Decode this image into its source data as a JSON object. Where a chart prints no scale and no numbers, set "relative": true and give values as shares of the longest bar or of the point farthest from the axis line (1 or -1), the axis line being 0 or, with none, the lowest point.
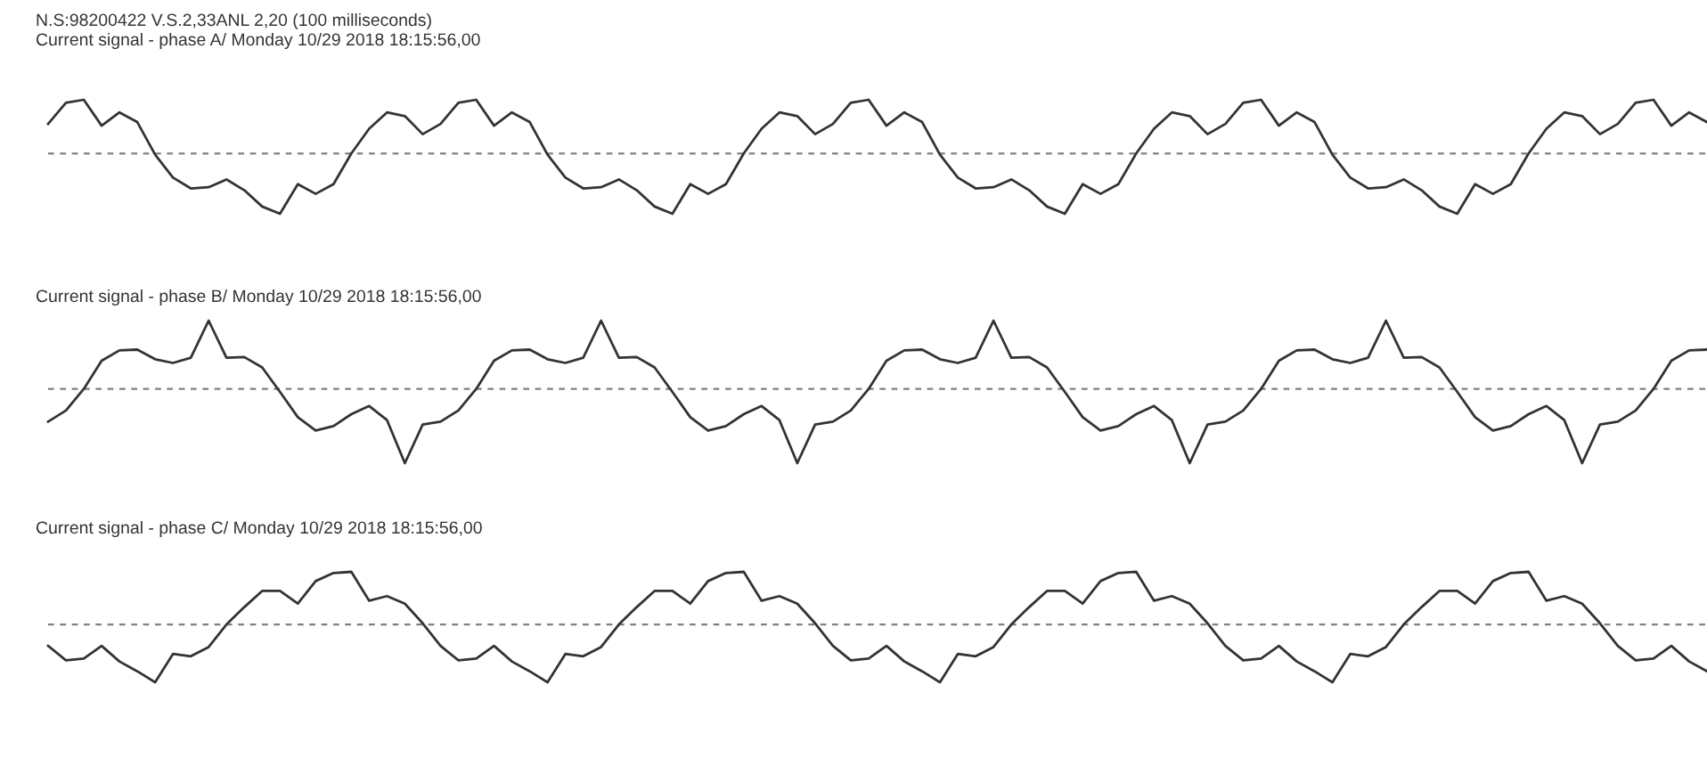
{
  "chart_data": [
    {
      "type": "line",
      "relative": true,
      "title": "N.S:98200422 V.S.2,33ANL 2,20 (100 milliseconds)",
      "subtitle": "Current signal - phase A/ Monday 10/29 2018 18:15:56,00",
      "marker": "none",
      "line_style": "solid",
      "categories": [
        null,
        null,
        null,
        null,
        null,
        null,
        null,
        null,
        null,
        null,
        null,
        null,
        null,
        null,
        null,
        null,
        null,
        null,
        null,
        null,
        null,
        null,
        null,
        null,
        null,
        null,
        null,
        null,
        null,
        null,
        null,
        null,
        null,
        null,
        null,
        null,
        null,
        null,
        null,
        null,
        null,
        null,
        null,
        null,
        null,
        null,
        null,
        null,
        null,
        null,
        null,
        null,
        null,
        null,
        null,
        null,
        null,
        null,
        null,
        null,
        null,
        null,
        null,
        null,
        null,
        null,
        null,
        null,
        null,
        null,
        null,
        null,
        null,
        null,
        null,
        null,
        null,
        null,
        null,
        null,
        null,
        null,
        null,
        null,
        null,
        null,
        null,
        null,
        null,
        null,
        null,
        null,
        null,
        null
      ],
      "ref_lines": [
        {
          "axis": "y",
          "value": 0,
          "line_style": "dashed",
          "color": "#808080"
        }
      ],
      "series": [
        {
          "color": "#333333",
          "values": [
            0.49,
            0.84,
            0.89,
            0.46,
            0.68,
            0.52,
            -0.02,
            -0.4,
            -0.58,
            -0.56,
            -0.43,
            -0.61,
            -0.88,
            -1.0,
            -0.51,
            -0.67,
            -0.51,
            0,
            0.41,
            0.68,
            0.62,
            0.32,
            0.49,
            0.84,
            0.89,
            0.46,
            0.68,
            0.52,
            -0.02,
            -0.4,
            -0.58,
            -0.56,
            -0.43,
            -0.61,
            -0.88,
            -1.0,
            -0.51,
            -0.67,
            -0.51,
            0,
            0.41,
            0.68,
            0.62,
            0.32,
            0.49,
            0.84,
            0.89,
            0.46,
            0.68,
            0.52,
            -0.02,
            -0.4,
            -0.58,
            -0.56,
            -0.43,
            -0.61,
            -0.88,
            -1.0,
            -0.51,
            -0.67,
            -0.51,
            0,
            0.41,
            0.68,
            0.62,
            0.32,
            0.49,
            0.84,
            0.89,
            0.46,
            0.68,
            0.52,
            -0.02,
            -0.4,
            -0.58,
            -0.56,
            -0.43,
            -0.61,
            -0.88,
            -1.0,
            -0.51,
            -0.67,
            -0.51,
            0,
            0.41,
            0.68,
            0.62,
            0.32,
            0.49,
            0.84,
            0.89,
            0.46,
            0.68,
            0.52
          ]
        }
      ]
    },
    {
      "type": "line",
      "relative": true,
      "title": "Current signal - phase B/ Monday 10/29 2018 18:15:56,00",
      "marker": "none",
      "line_style": "solid",
      "categories": [
        null,
        null,
        null,
        null,
        null,
        null,
        null,
        null,
        null,
        null,
        null,
        null,
        null,
        null,
        null,
        null,
        null,
        null,
        null,
        null,
        null,
        null,
        null,
        null,
        null,
        null,
        null,
        null,
        null,
        null,
        null,
        null,
        null,
        null,
        null,
        null,
        null,
        null,
        null,
        null,
        null,
        null,
        null,
        null,
        null,
        null,
        null,
        null,
        null,
        null,
        null,
        null,
        null,
        null,
        null,
        null,
        null,
        null,
        null,
        null,
        null,
        null,
        null,
        null,
        null,
        null,
        null,
        null,
        null,
        null,
        null,
        null,
        null,
        null,
        null,
        null,
        null,
        null,
        null,
        null,
        null,
        null,
        null,
        null,
        null,
        null,
        null,
        null,
        null,
        null,
        null,
        null,
        null,
        null
      ],
      "ref_lines": [
        {
          "axis": "y",
          "value": 0,
          "line_style": "dashed",
          "color": "#808080"
        }
      ],
      "series": [
        {
          "color": "#333333",
          "values": [
            -0.44,
            -0.29,
            0,
            0.38,
            0.52,
            0.53,
            0.4,
            0.35,
            0.42,
            0.92,
            0.42,
            0.43,
            0.29,
            -0.04,
            -0.38,
            -0.56,
            -0.5,
            -0.34,
            -0.23,
            -0.42,
            -1.0,
            -0.48,
            -0.44,
            -0.29,
            0,
            0.38,
            0.52,
            0.53,
            0.4,
            0.35,
            0.42,
            0.92,
            0.42,
            0.43,
            0.29,
            -0.04,
            -0.38,
            -0.56,
            -0.5,
            -0.34,
            -0.23,
            -0.42,
            -1.0,
            -0.48,
            -0.44,
            -0.29,
            0,
            0.38,
            0.52,
            0.53,
            0.4,
            0.35,
            0.42,
            0.92,
            0.42,
            0.43,
            0.29,
            -0.04,
            -0.38,
            -0.56,
            -0.5,
            -0.34,
            -0.23,
            -0.42,
            -1.0,
            -0.48,
            -0.44,
            -0.29,
            0,
            0.38,
            0.52,
            0.53,
            0.4,
            0.35,
            0.42,
            0.92,
            0.42,
            0.43,
            0.29,
            -0.04,
            -0.38,
            -0.56,
            -0.5,
            -0.34,
            -0.23,
            -0.42,
            -1.0,
            -0.48,
            -0.44,
            -0.29,
            0,
            0.38,
            0.52,
            0.53
          ]
        }
      ]
    },
    {
      "type": "line",
      "relative": true,
      "title": "Current signal - phase C/ Monday 10/29 2018 18:15:56,00",
      "marker": "none",
      "line_style": "solid",
      "categories": [
        null,
        null,
        null,
        null,
        null,
        null,
        null,
        null,
        null,
        null,
        null,
        null,
        null,
        null,
        null,
        null,
        null,
        null,
        null,
        null,
        null,
        null,
        null,
        null,
        null,
        null,
        null,
        null,
        null,
        null,
        null,
        null,
        null,
        null,
        null,
        null,
        null,
        null,
        null,
        null,
        null,
        null,
        null,
        null,
        null,
        null,
        null,
        null,
        null,
        null,
        null,
        null,
        null,
        null,
        null,
        null,
        null,
        null,
        null,
        null,
        null,
        null,
        null,
        null,
        null,
        null,
        null,
        null,
        null,
        null,
        null,
        null,
        null,
        null,
        null,
        null,
        null,
        null,
        null,
        null,
        null,
        null,
        null,
        null,
        null,
        null,
        null,
        null,
        null,
        null,
        null,
        null,
        null,
        null
      ],
      "ref_lines": [
        {
          "axis": "y",
          "value": 0,
          "line_style": "dashed",
          "color": "#808080"
        }
      ],
      "series": [
        {
          "color": "#333333",
          "values": [
            -0.37,
            -0.62,
            -0.59,
            -0.37,
            -0.64,
            -0.81,
            -1.0,
            -0.51,
            -0.55,
            -0.39,
            0,
            0.3,
            0.58,
            0.58,
            0.36,
            0.75,
            0.89,
            0.91,
            0.41,
            0.49,
            0.36,
            0.02,
            -0.37,
            -0.62,
            -0.59,
            -0.37,
            -0.64,
            -0.81,
            -1.0,
            -0.51,
            -0.55,
            -0.39,
            0,
            0.3,
            0.58,
            0.58,
            0.36,
            0.75,
            0.89,
            0.91,
            0.41,
            0.49,
            0.36,
            0.02,
            -0.37,
            -0.62,
            -0.59,
            -0.37,
            -0.64,
            -0.81,
            -1.0,
            -0.51,
            -0.55,
            -0.39,
            0,
            0.3,
            0.58,
            0.58,
            0.36,
            0.75,
            0.89,
            0.91,
            0.41,
            0.49,
            0.36,
            0.02,
            -0.37,
            -0.62,
            -0.59,
            -0.37,
            -0.64,
            -0.81,
            -1.0,
            -0.51,
            -0.55,
            -0.39,
            0,
            0.3,
            0.58,
            0.58,
            0.36,
            0.75,
            0.89,
            0.91,
            0.41,
            0.49,
            0.36,
            0.02,
            -0.37,
            -0.62,
            -0.59,
            -0.37,
            -0.64,
            -0.81
          ]
        }
      ]
    }
  ]
}
